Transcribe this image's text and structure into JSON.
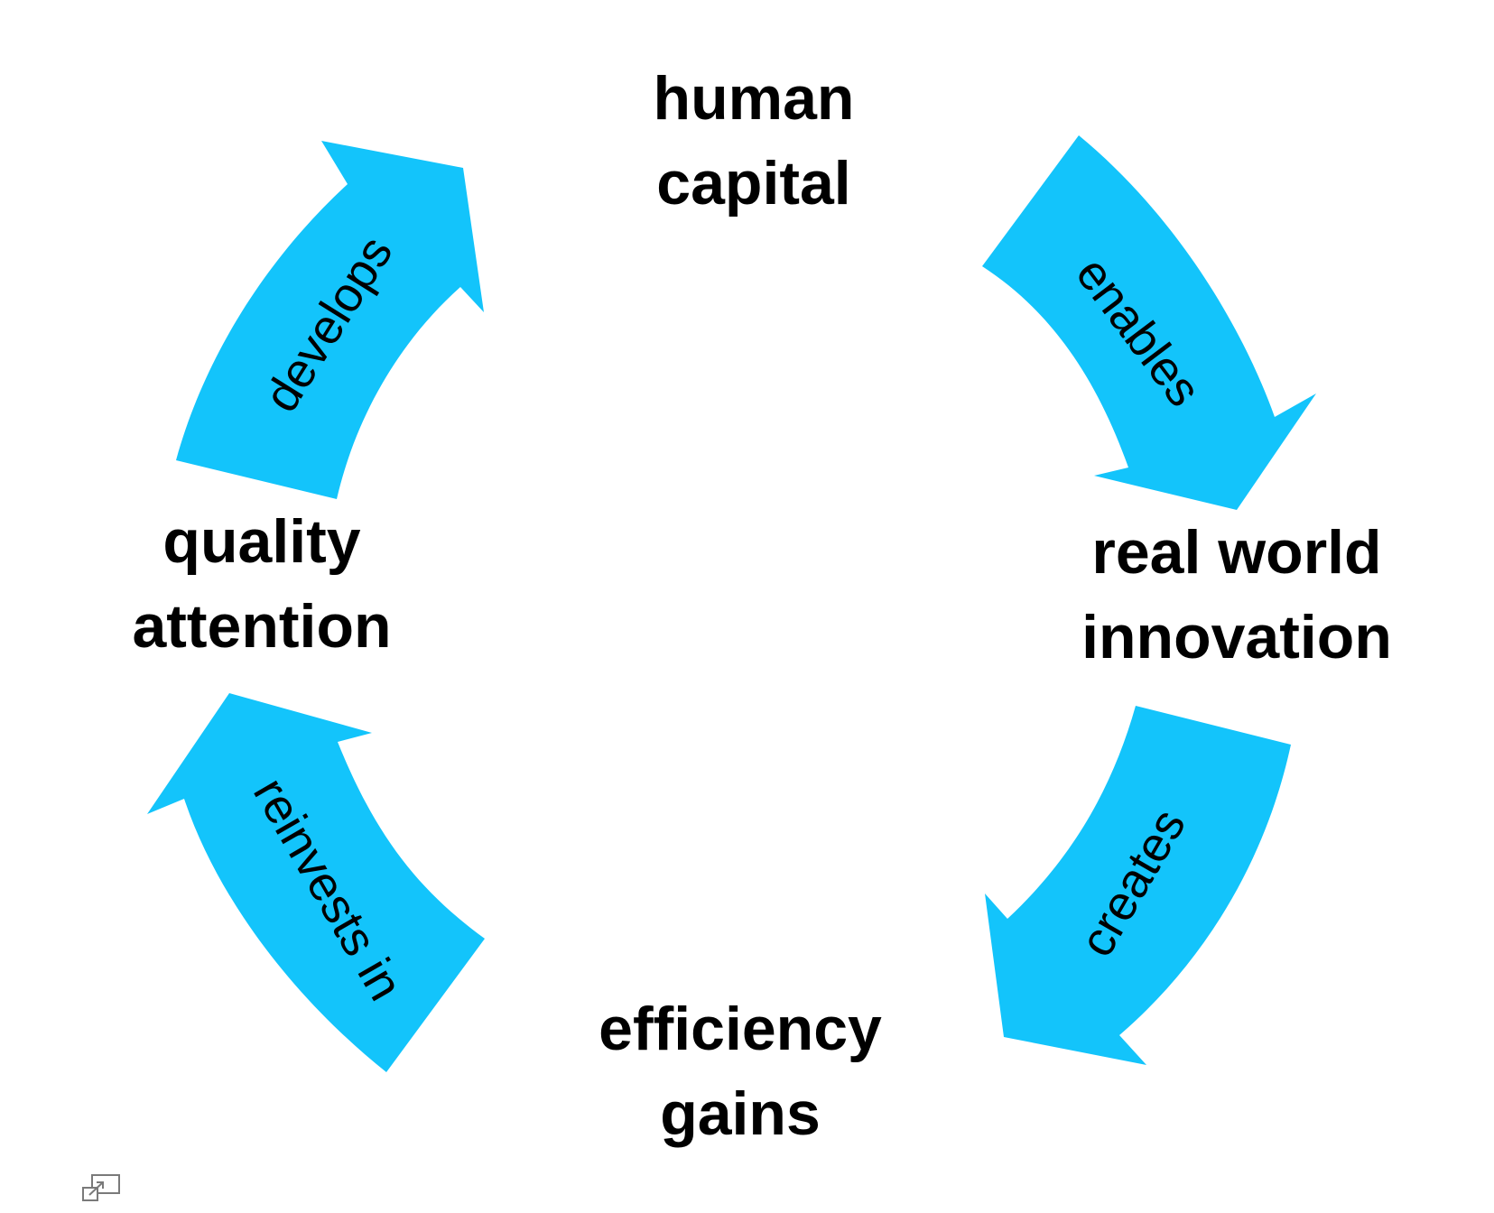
{
  "diagram": {
    "nodes": [
      {
        "id": "human-capital",
        "lines": [
          "human",
          "capital"
        ]
      },
      {
        "id": "real-world-innovation",
        "lines": [
          "real world",
          "innovation"
        ]
      },
      {
        "id": "efficiency-gains",
        "lines": [
          "efficiency",
          "gains"
        ]
      },
      {
        "id": "quality-attention",
        "lines": [
          "quality",
          "attention"
        ]
      }
    ],
    "edges": [
      {
        "id": "enables",
        "from": "human-capital",
        "to": "real-world-innovation",
        "label": "enables"
      },
      {
        "id": "creates",
        "from": "real-world-innovation",
        "to": "efficiency-gains",
        "label": "creates"
      },
      {
        "id": "reinvests-in",
        "from": "efficiency-gains",
        "to": "quality-attention",
        "label": "reinvests in"
      },
      {
        "id": "develops",
        "from": "quality-attention",
        "to": "human-capital",
        "label": "develops"
      }
    ],
    "arrow_color": "#13c4fb",
    "text_color": "#000000",
    "icons": [
      "resize-icon"
    ]
  }
}
